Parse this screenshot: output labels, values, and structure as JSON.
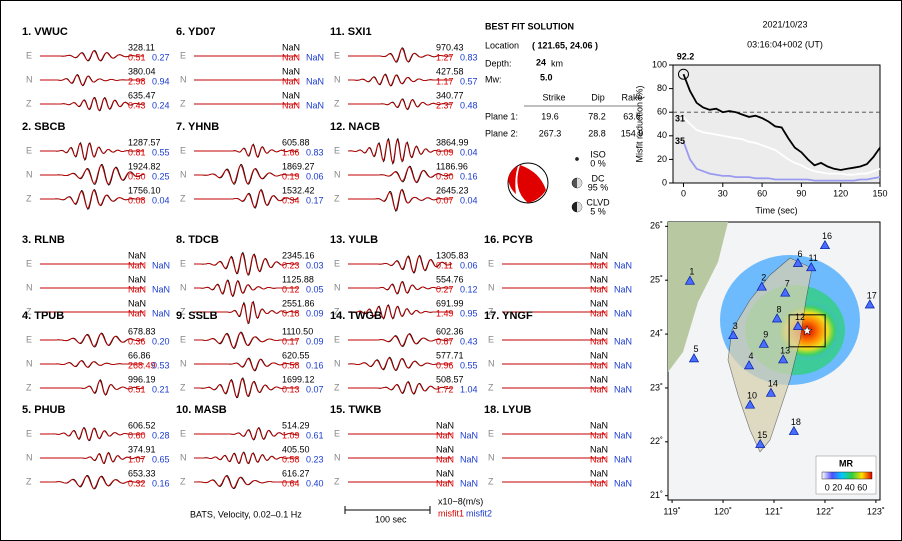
{
  "stations": [
    {
      "label": "1.  VWUC",
      "rows": [
        [
          "E",
          "328.11",
          "0.51",
          "0.27"
        ],
        [
          "N",
          "380.04",
          "2.98",
          "0.94"
        ],
        [
          "Z",
          "635.47",
          "0.43",
          "0.24"
        ]
      ]
    },
    {
      "label": "2.  SBCB",
      "rows": [
        [
          "E",
          "1287.57",
          "0.81",
          "0.55"
        ],
        [
          "N",
          "1924.82",
          "0.50",
          "0.25"
        ],
        [
          "Z",
          "1756.10",
          "0.08",
          "0.04"
        ]
      ]
    },
    {
      "label": "3.  RLNB",
      "rows": [
        [
          "E",
          "NaN",
          "NaN",
          "NaN"
        ],
        [
          "N",
          "NaN",
          "NaN",
          "NaN"
        ],
        [
          "Z",
          "NaN",
          "NaN",
          "NaN"
        ]
      ]
    },
    {
      "label": "4.  TPUB",
      "rows": [
        [
          "E",
          "678.83",
          "0.36",
          "0.20"
        ],
        [
          "N",
          "66.86",
          "268.49",
          "0.53"
        ],
        [
          "Z",
          "996.19",
          "0.51",
          "0.21"
        ]
      ]
    },
    {
      "label": "5.  PHUB",
      "rows": [
        [
          "E",
          "606.52",
          "0.60",
          "0.28"
        ],
        [
          "N",
          "374.91",
          "1.07",
          "0.65"
        ],
        [
          "Z",
          "653.33",
          "0.32",
          "0.16"
        ]
      ]
    },
    {
      "label": "6.  YD07",
      "rows": [
        [
          "E",
          "NaN",
          "NaN",
          "NaN"
        ],
        [
          "N",
          "NaN",
          "NaN",
          "NaN"
        ],
        [
          "Z",
          "NaN",
          "NaN",
          "NaN"
        ]
      ]
    },
    {
      "label": "7.  YHNB",
      "rows": [
        [
          "E",
          "605.88",
          "1.66",
          "0.83"
        ],
        [
          "N",
          "1869.27",
          "0.19",
          "0.06"
        ],
        [
          "Z",
          "1532.42",
          "0.34",
          "0.17"
        ]
      ]
    },
    {
      "label": "8.  TDCB",
      "rows": [
        [
          "E",
          "2345.16",
          "0.23",
          "0.03"
        ],
        [
          "N",
          "1125.88",
          "0.12",
          "0.05"
        ],
        [
          "Z",
          "2551.86",
          "0.18",
          "0.09"
        ]
      ]
    },
    {
      "label": "9.  SSLB",
      "rows": [
        [
          "E",
          "1110.50",
          "0.17",
          "0.09"
        ],
        [
          "N",
          "620.55",
          "0.58",
          "0.16"
        ],
        [
          "Z",
          "1699.12",
          "0.13",
          "0.07"
        ]
      ]
    },
    {
      "label": "10. MASB",
      "rows": [
        [
          "E",
          "514.29",
          "1.09",
          "0.61"
        ],
        [
          "N",
          "405.50",
          "0.58",
          "0.23"
        ],
        [
          "Z",
          "616.27",
          "0.64",
          "0.40"
        ]
      ]
    },
    {
      "label": "11. SXI1",
      "rows": [
        [
          "E",
          "970.43",
          "1.27",
          "0.83"
        ],
        [
          "N",
          "427.58",
          "1.17",
          "0.57"
        ],
        [
          "Z",
          "340.77",
          "2.37",
          "0.48"
        ]
      ]
    },
    {
      "label": "12. NACB",
      "rows": [
        [
          "E",
          "3864.99",
          "0.09",
          "0.04"
        ],
        [
          "N",
          "1186.96",
          "0.30",
          "0.16"
        ],
        [
          "Z",
          "2645.23",
          "0.07",
          "0.04"
        ]
      ]
    },
    {
      "label": "13. YULB",
      "rows": [
        [
          "E",
          "1305.83",
          "0.11",
          "0.06"
        ],
        [
          "N",
          "554.76",
          "0.27",
          "0.12"
        ],
        [
          "Z",
          "691.99",
          "1.49",
          "0.95"
        ]
      ]
    },
    {
      "label": "14. TWGB",
      "rows": [
        [
          "E",
          "602.36",
          "0.87",
          "0.43"
        ],
        [
          "N",
          "577.71",
          "0.96",
          "0.55"
        ],
        [
          "Z",
          "508.57",
          "1.72",
          "1.04"
        ]
      ]
    },
    {
      "label": "15. TWKB",
      "rows": [
        [
          "E",
          "NaN",
          "NaN",
          "NaN"
        ],
        [
          "N",
          "NaN",
          "NaN",
          "NaN"
        ],
        [
          "Z",
          "NaN",
          "NaN",
          "NaN"
        ]
      ]
    },
    {
      "label": "16. PCYB",
      "rows": [
        [
          "E",
          "NaN",
          "NaN",
          "NaN"
        ],
        [
          "N",
          "NaN",
          "NaN",
          "NaN"
        ],
        [
          "Z",
          "NaN",
          "NaN",
          "NaN"
        ]
      ]
    },
    {
      "label": "17. YNGF",
      "rows": [
        [
          "E",
          "NaN",
          "NaN",
          "NaN"
        ],
        [
          "N",
          "NaN",
          "NaN",
          "NaN"
        ],
        [
          "Z",
          "NaN",
          "NaN",
          "NaN"
        ]
      ]
    },
    {
      "label": "18. LYUB",
      "rows": [
        [
          "E",
          "NaN",
          "NaN",
          "NaN"
        ],
        [
          "N",
          "NaN",
          "NaN",
          "NaN"
        ],
        [
          "Z",
          "NaN",
          "NaN",
          "NaN"
        ]
      ]
    }
  ],
  "footer": {
    "filter": "BATS, Velocity, 0.02–0.1 Hz",
    "scale": "100 sec",
    "units": "x10−8(m/s)",
    "misfit1": "misfit1",
    "misfit2": "misfit2"
  },
  "solution": {
    "title": "BEST FIT SOLUTION",
    "location_label": "Location",
    "location": "( 121.65, 24.06 )",
    "depth_label": "Depth:",
    "depth": "24",
    "depth_unit": "km",
    "mw_label": "Mw:",
    "mw": "5.0",
    "headers": [
      "Strike",
      "Dip",
      "Rake"
    ],
    "planes": [
      [
        "Plane 1:",
        "19.6",
        "78.2",
        "63.6"
      ],
      [
        "Plane 2:",
        "267.3",
        "28.8",
        "154.9"
      ]
    ],
    "components": [
      [
        "ISO",
        "0 %"
      ],
      [
        "DC",
        "95 %"
      ],
      [
        "CLVD",
        "5 %"
      ]
    ]
  },
  "header": {
    "date": "2021/10/23",
    "time": "03:16:04+002  (UT)"
  },
  "chart_data": {
    "type": "line",
    "xlabel": "Time (sec)",
    "ylabel": "Misfit reduction (%)",
    "x": [
      0,
      5,
      10,
      15,
      20,
      25,
      30,
      35,
      40,
      45,
      50,
      55,
      60,
      65,
      70,
      75,
      80,
      85,
      90,
      95,
      100,
      105,
      110,
      115,
      120,
      125,
      130,
      135,
      140,
      145,
      150
    ],
    "series": [
      {
        "color": "#000000",
        "values": [
          92.2,
          78,
          68,
          64,
          62,
          63,
          60,
          61,
          60,
          58,
          56,
          57,
          55,
          52,
          48,
          47,
          38,
          30,
          26,
          20,
          15,
          17,
          14,
          12,
          11,
          12,
          13,
          14,
          16,
          22,
          30
        ]
      },
      {
        "color": "#ffffff",
        "values": [
          56,
          50,
          45,
          43,
          42,
          41,
          40,
          39,
          38,
          37,
          35,
          34,
          32,
          30,
          28,
          24,
          20,
          17,
          15,
          12,
          10,
          9,
          8,
          8,
          8,
          7,
          7,
          8,
          8,
          10,
          12
        ]
      },
      {
        "color": "#9a9af0",
        "values": [
          35,
          20,
          12,
          10,
          8,
          7,
          6,
          6,
          5,
          5,
          5,
          4,
          4,
          4,
          3,
          3,
          3,
          3,
          3,
          3,
          2,
          2,
          2,
          2,
          2,
          2,
          2,
          3,
          3,
          4,
          5
        ]
      }
    ],
    "annotations": [
      "92.2",
      "31",
      "35"
    ],
    "hline": 60,
    "xlim": [
      -8,
      150
    ],
    "ylim": [
      0,
      100
    ],
    "xticks": [
      0,
      30,
      60,
      90,
      120,
      150
    ],
    "yticks": [
      0,
      20,
      40,
      60,
      80,
      100
    ]
  },
  "map": {
    "xlim": [
      118.92,
      123.08
    ],
    "ylim": [
      20.92,
      26.08
    ],
    "xticks": [
      {
        "value": 119,
        "label": "119˚"
      },
      {
        "value": 120,
        "label": "120˚"
      },
      {
        "value": 121,
        "label": "121˚"
      },
      {
        "value": 122,
        "label": "122˚"
      },
      {
        "value": 123,
        "label": "123˚"
      }
    ],
    "yticks": [
      {
        "value": 21,
        "label": "21˚"
      },
      {
        "value": 22,
        "label": "22˚"
      },
      {
        "value": 23,
        "label": "23˚"
      },
      {
        "value": 24,
        "label": "24˚"
      },
      {
        "value": 25,
        "label": "25˚"
      },
      {
        "value": 26,
        "label": "26˚"
      }
    ],
    "stations": [
      {
        "label": "1",
        "lon": 119.35,
        "lat": 24.98
      },
      {
        "label": "2",
        "lon": 120.76,
        "lat": 24.87
      },
      {
        "label": "3",
        "lon": 120.2,
        "lat": 23.97
      },
      {
        "label": "4",
        "lon": 120.51,
        "lat": 23.41
      },
      {
        "label": "5",
        "lon": 119.43,
        "lat": 23.54
      },
      {
        "label": "6",
        "lon": 121.47,
        "lat": 25.31
      },
      {
        "label": "7",
        "lon": 121.22,
        "lat": 24.76
      },
      {
        "label": "8",
        "lon": 121.06,
        "lat": 24.28
      },
      {
        "label": "9",
        "lon": 120.8,
        "lat": 23.81
      },
      {
        "label": "10",
        "lon": 120.53,
        "lat": 22.68
      },
      {
        "label": "11",
        "lon": 121.73,
        "lat": 25.23
      },
      {
        "label": "12",
        "lon": 121.47,
        "lat": 24.14
      },
      {
        "label": "13",
        "lon": 121.18,
        "lat": 23.52
      },
      {
        "label": "14",
        "lon": 120.94,
        "lat": 22.9
      },
      {
        "label": "15",
        "lon": 120.73,
        "lat": 21.95
      },
      {
        "label": "16",
        "lon": 122.0,
        "lat": 25.64
      },
      {
        "label": "17",
        "lon": 122.88,
        "lat": 24.54
      },
      {
        "label": "18",
        "lon": 121.39,
        "lat": 22.19
      }
    ],
    "epicenter": {
      "lon": 121.65,
      "lat": 24.06
    },
    "legend_title": "MR",
    "legend_ticks": "0 20 40 60"
  }
}
